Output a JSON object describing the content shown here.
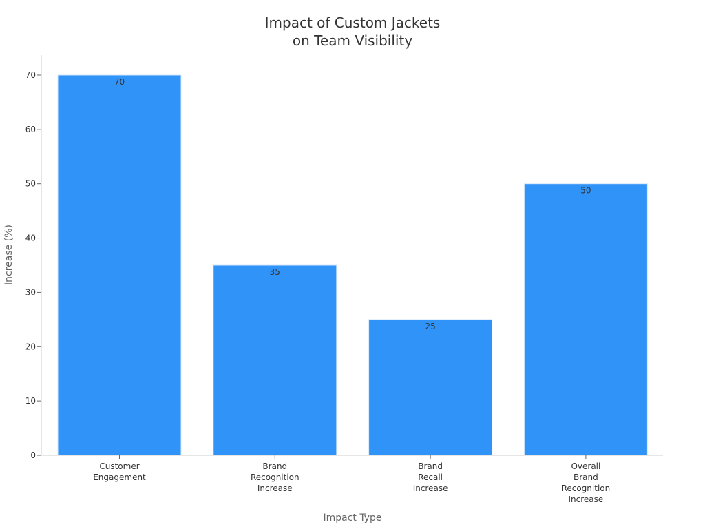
{
  "chart_data": {
    "type": "bar",
    "title": [
      "Impact of Custom Jackets",
      "on Team Visibility"
    ],
    "xlabel": "Impact Type",
    "ylabel": "Increase (%)",
    "categories": [
      [
        "Customer",
        "Engagement"
      ],
      [
        "Brand",
        "Recognition",
        "Increase"
      ],
      [
        "Brand",
        "Recall",
        "Increase"
      ],
      [
        "Overall",
        "Brand",
        "Recognition",
        "Increase"
      ]
    ],
    "values": [
      70,
      35,
      25,
      50
    ],
    "data_labels": [
      "70",
      "35",
      "25",
      "50"
    ],
    "ylim": [
      0,
      75
    ],
    "yticks": [
      0,
      10,
      20,
      30,
      40,
      50,
      60,
      70
    ],
    "bar_color": "#2f93f8",
    "grid": false,
    "legend": "none"
  }
}
